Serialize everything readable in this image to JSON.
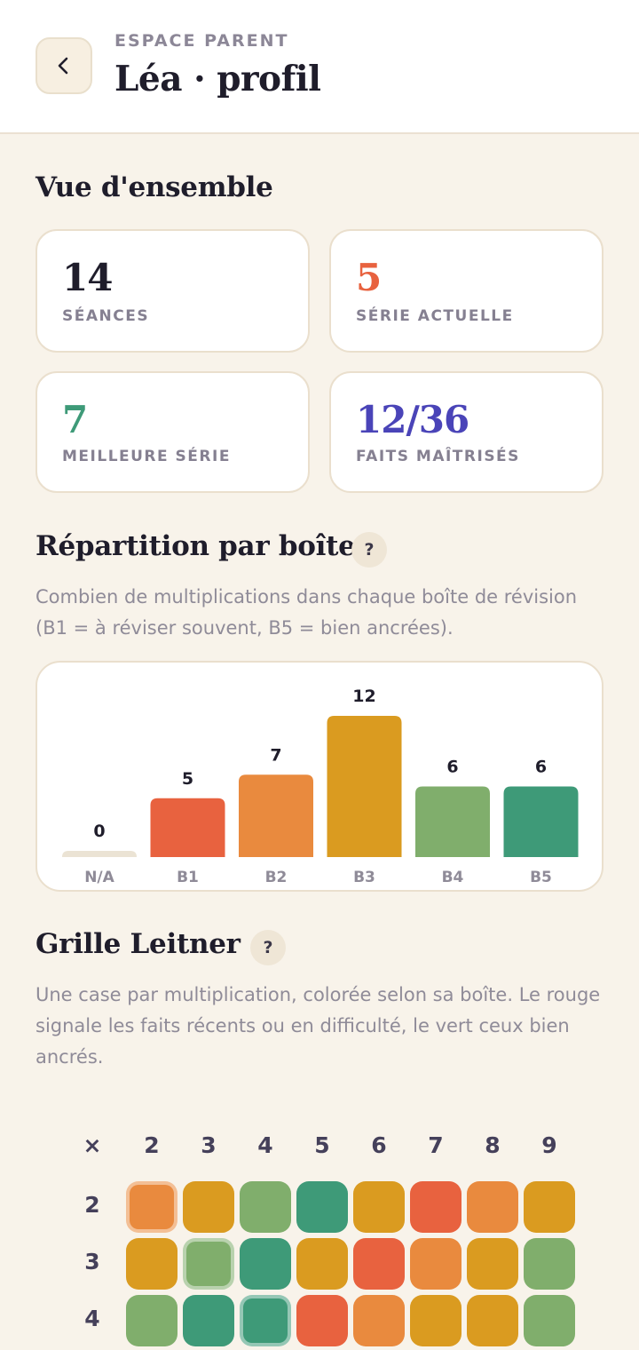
{
  "header": {
    "eyebrow": "ESPACE PARENT",
    "title": "Léa · profil",
    "back_icon": "chevron-left-icon"
  },
  "overview": {
    "title": "Vue d'ensemble",
    "stats": [
      {
        "value": "14",
        "label": "SÉANCES",
        "color": "#1f1d2b"
      },
      {
        "value": "5",
        "label": "SÉRIE ACTUELLE",
        "color": "#e8623f"
      },
      {
        "value": "7",
        "label": "MEILLEURE SÉRIE",
        "color": "#3e9a78"
      },
      {
        "value": "12/36",
        "label": "FAITS MAÎTRISÉS",
        "color": "#4a44b8"
      }
    ]
  },
  "distribution": {
    "title": "Répartition par boîte",
    "help": "?",
    "description": "Combien de multiplications dans chaque boîte de révision (B1 = à réviser souvent, B5 = bien ancrées)."
  },
  "chart_data": {
    "type": "bar",
    "categories": [
      "N/A",
      "B1",
      "B2",
      "B3",
      "B4",
      "B5"
    ],
    "values": [
      0,
      5,
      7,
      12,
      6,
      6
    ],
    "colors": [
      "#ebe3d4",
      "#e8623f",
      "#e98a3e",
      "#da9b20",
      "#80ae6c",
      "#3e9a78"
    ],
    "title": "",
    "xlabel": "",
    "ylabel": "",
    "grid": false
  },
  "leitner": {
    "title": "Grille Leitner",
    "help": "?",
    "description": "Une case par multiplication, colorée selon sa boîte. Le rouge signale les faits récents ou en difficulté, le vert ceux bien ancrés.",
    "corner": "×",
    "columns": [
      "2",
      "3",
      "4",
      "5",
      "6",
      "7",
      "8",
      "9"
    ],
    "rows": [
      {
        "label": "2",
        "boxes": [
          2,
          3,
          4,
          5,
          3,
          1,
          2,
          3
        ]
      },
      {
        "label": "3",
        "boxes": [
          3,
          4,
          5,
          3,
          1,
          2,
          3,
          4
        ]
      },
      {
        "label": "4",
        "boxes": [
          4,
          5,
          5,
          1,
          2,
          3,
          3,
          4
        ]
      }
    ],
    "box_colors": {
      "1": "#e8623f",
      "2": "#e98a3e",
      "3": "#da9b20",
      "4": "#80ae6c",
      "5": "#3e9a78"
    }
  }
}
